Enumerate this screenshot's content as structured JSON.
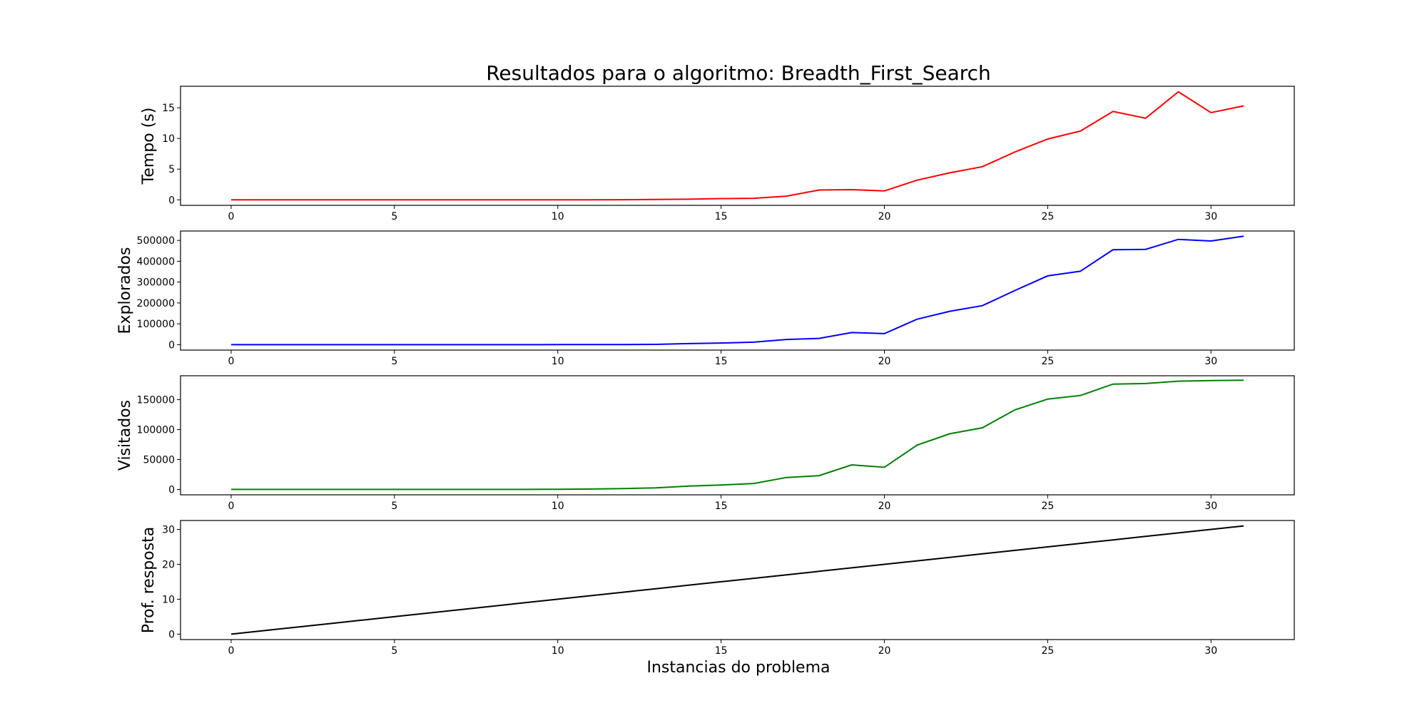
{
  "figure": {
    "title": "Resultados para o algoritmo: Breadth_First_Search",
    "xlabel": "Instancias do problema"
  },
  "chart_data": [
    {
      "type": "line",
      "ylabel": "Tempo (s)",
      "color": "#ff0000",
      "xlim": [
        -1.55,
        32.55
      ],
      "ylim": [
        -0.9,
        18.5
      ],
      "xticks": [
        0,
        5,
        10,
        15,
        20,
        25,
        30
      ],
      "yticks": [
        0,
        5,
        10,
        15
      ],
      "x": [
        0,
        1,
        2,
        3,
        4,
        5,
        6,
        7,
        8,
        9,
        10,
        11,
        12,
        13,
        14,
        15,
        16,
        17,
        18,
        19,
        20,
        21,
        22,
        23,
        24,
        25,
        26,
        27,
        28,
        29,
        30,
        31
      ],
      "values": [
        0,
        0,
        0,
        0,
        0,
        0,
        0,
        0,
        0,
        0,
        0,
        0,
        0.02,
        0.05,
        0.1,
        0.2,
        0.25,
        0.6,
        1.6,
        1.65,
        1.45,
        3.2,
        4.4,
        5.4,
        7.8,
        9.9,
        11.2,
        14.4,
        13.3,
        17.6,
        14.2,
        15.3
      ]
    },
    {
      "type": "line",
      "ylabel": "Explorados",
      "color": "#0000ff",
      "xlim": [
        -1.55,
        32.55
      ],
      "ylim": [
        -26000,
        545000
      ],
      "xticks": [
        0,
        5,
        10,
        15,
        20,
        25,
        30
      ],
      "yticks": [
        0,
        100000,
        200000,
        300000,
        400000,
        500000
      ],
      "x": [
        0,
        1,
        2,
        3,
        4,
        5,
        6,
        7,
        8,
        9,
        10,
        11,
        12,
        13,
        14,
        15,
        16,
        17,
        18,
        19,
        20,
        21,
        22,
        23,
        24,
        25,
        26,
        27,
        28,
        29,
        30,
        31
      ],
      "values": [
        0,
        0,
        0,
        0,
        0,
        0,
        0,
        0,
        0,
        0,
        200,
        400,
        800,
        1500,
        5000,
        8000,
        12000,
        25000,
        30000,
        58000,
        53000,
        122000,
        160000,
        187000,
        260000,
        330000,
        352000,
        455000,
        457000,
        505000,
        497000,
        520000
      ]
    },
    {
      "type": "line",
      "ylabel": "Visitados",
      "color": "#008000",
      "xlim": [
        -1.55,
        32.55
      ],
      "ylim": [
        -9000,
        190000
      ],
      "xticks": [
        0,
        5,
        10,
        15,
        20,
        25,
        30
      ],
      "yticks": [
        0,
        50000,
        100000,
        150000
      ],
      "x": [
        0,
        1,
        2,
        3,
        4,
        5,
        6,
        7,
        8,
        9,
        10,
        11,
        12,
        13,
        14,
        15,
        16,
        17,
        18,
        19,
        20,
        21,
        22,
        23,
        24,
        25,
        26,
        27,
        28,
        29,
        30,
        31
      ],
      "values": [
        0,
        0,
        0,
        0,
        0,
        0,
        0,
        0,
        0,
        100,
        300,
        600,
        1500,
        2500,
        5500,
        7500,
        10000,
        20000,
        23000,
        41000,
        37000,
        74000,
        93000,
        103000,
        133000,
        151000,
        157000,
        176000,
        177000,
        181000,
        182000,
        182500
      ]
    },
    {
      "type": "line",
      "ylabel": "Prof. resposta",
      "color": "#000000",
      "xlim": [
        -1.55,
        32.55
      ],
      "ylim": [
        -1.55,
        32.55
      ],
      "xticks": [
        0,
        5,
        10,
        15,
        20,
        25,
        30
      ],
      "yticks": [
        0,
        10,
        20,
        30
      ],
      "x": [
        0,
        1,
        2,
        3,
        4,
        5,
        6,
        7,
        8,
        9,
        10,
        11,
        12,
        13,
        14,
        15,
        16,
        17,
        18,
        19,
        20,
        21,
        22,
        23,
        24,
        25,
        26,
        27,
        28,
        29,
        30,
        31
      ],
      "values": [
        0,
        1,
        2,
        3,
        4,
        5,
        6,
        7,
        8,
        9,
        10,
        11,
        12,
        13,
        14,
        15,
        16,
        17,
        18,
        19,
        20,
        21,
        22,
        23,
        24,
        25,
        26,
        27,
        28,
        29,
        30,
        31
      ]
    }
  ]
}
